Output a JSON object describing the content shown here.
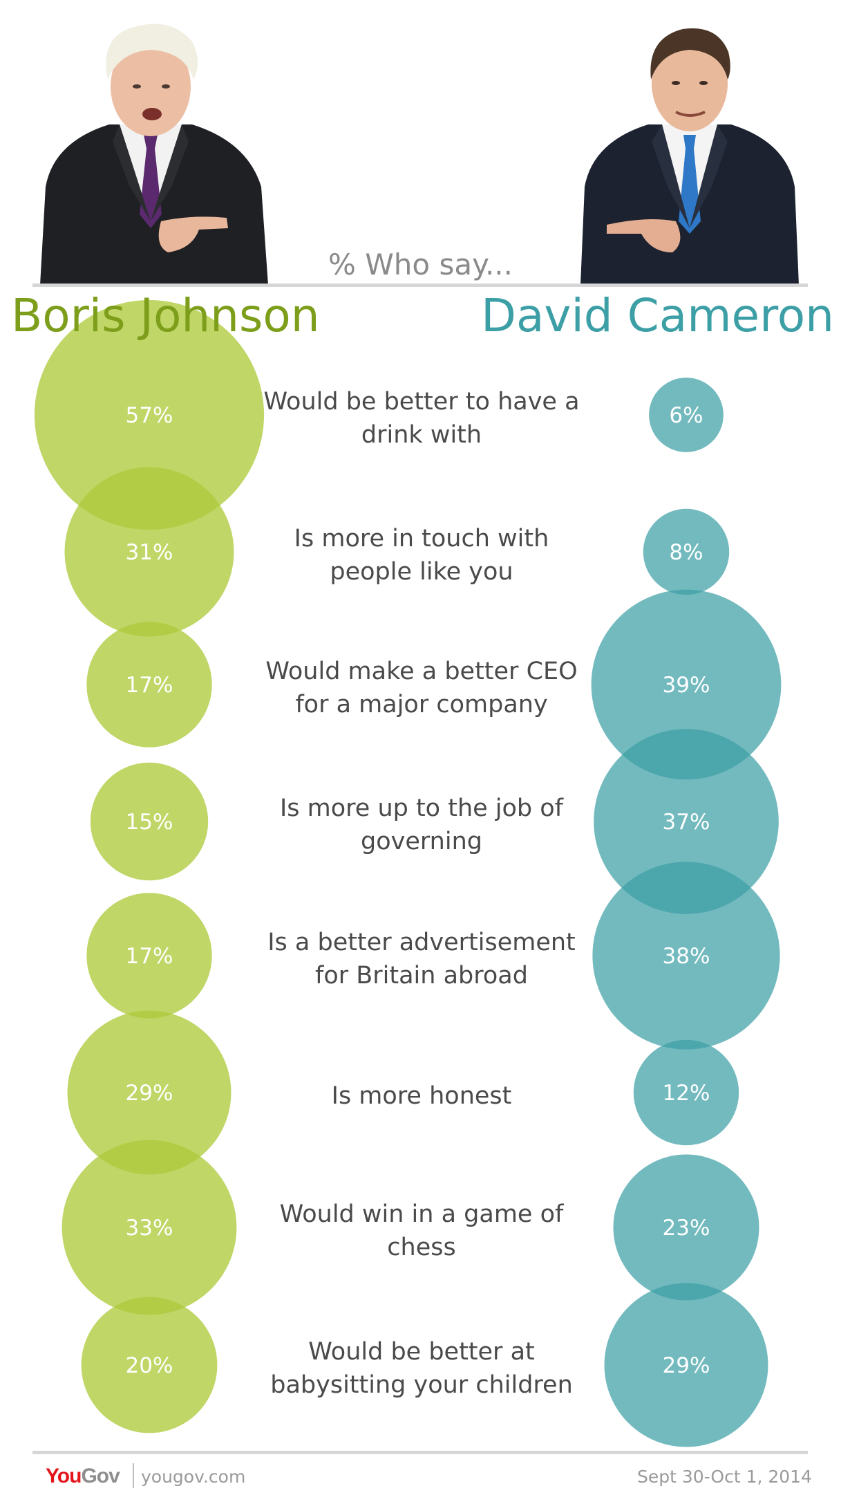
{
  "header": {
    "who_say": "% Who say...",
    "left_name": "Boris Johnson",
    "right_name": "David Cameron"
  },
  "colors": {
    "left": "#aecb3c",
    "right": "#3d9fa6"
  },
  "chart_data": {
    "type": "bubble",
    "title": "% Who say...",
    "categories": [
      "Would be better to have a drink with",
      "Is more in touch with people like you",
      "Would make a better CEO for a major company",
      "Is more up to the job of governing",
      "Is a better advertisement for Britain abroad",
      "Is more honest",
      "Would win in a game of chess",
      "Would be better at babysitting your children"
    ],
    "series": [
      {
        "name": "Boris Johnson",
        "values": [
          57,
          31,
          17,
          15,
          17,
          29,
          33,
          20
        ],
        "labels": [
          "57%",
          "31%",
          "17%",
          "15%",
          "17%",
          "29%",
          "33%",
          "20%"
        ]
      },
      {
        "name": "David Cameron",
        "values": [
          6,
          8,
          39,
          37,
          38,
          12,
          23,
          29
        ],
        "labels": [
          "6%",
          "8%",
          "39%",
          "37%",
          "38%",
          "12%",
          "23%",
          "29%"
        ]
      }
    ]
  },
  "statements": [
    [
      "Would be better to have a",
      "drink with"
    ],
    [
      "Is more in touch with",
      "people like you"
    ],
    [
      "Would make a better CEO",
      "for a major company"
    ],
    [
      "Is more up to the job of",
      "governing"
    ],
    [
      "Is a better advertisement",
      "for Britain abroad"
    ],
    [
      "Is more honest"
    ],
    [
      "Would win in a game of",
      "chess"
    ],
    [
      "Would be better at",
      "babysitting your children"
    ]
  ],
  "footer": {
    "logo_you": "You",
    "logo_gov": "Gov",
    "site": "yougov.com",
    "date": "Sept 30-Oct 1, 2014"
  }
}
